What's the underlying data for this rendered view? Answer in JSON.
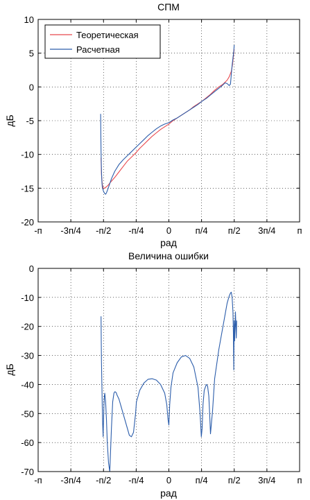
{
  "chart_data": [
    {
      "type": "line",
      "title": "СПМ",
      "xlabel": "рад",
      "ylabel": "дБ",
      "xlim": [
        -3.14159,
        3.14159
      ],
      "ylim": [
        -20,
        10
      ],
      "grid": true,
      "legend_position": "top-left",
      "x_ticks": [
        {
          "value": -3.14159,
          "label": "-п"
        },
        {
          "value": -2.35619,
          "label": "-3п/4"
        },
        {
          "value": -1.5708,
          "label": "-п/2"
        },
        {
          "value": -0.7854,
          "label": "-п/4"
        },
        {
          "value": 0,
          "label": "0"
        },
        {
          "value": 0.7854,
          "label": "п/4"
        },
        {
          "value": 1.5708,
          "label": "п/2"
        },
        {
          "value": 2.35619,
          "label": "3п/4"
        },
        {
          "value": 3.14159,
          "label": "п"
        }
      ],
      "y_ticks": [
        {
          "value": 10,
          "label": "10"
        },
        {
          "value": 5,
          "label": "5"
        },
        {
          "value": 0,
          "label": "0"
        },
        {
          "value": -5,
          "label": "-5"
        },
        {
          "value": -10,
          "label": "-10"
        },
        {
          "value": -15,
          "label": "-15"
        },
        {
          "value": -20,
          "label": "-20"
        }
      ],
      "series": [
        {
          "name": "Теоретическая",
          "color": "#e8474c",
          "x": [
            -1.63,
            -1.62,
            -1.6,
            -1.58,
            -1.55,
            -1.5,
            -1.45,
            -1.4,
            -1.3,
            -1.2,
            -1.1,
            -1.0,
            -0.9,
            -0.8,
            -0.7,
            -0.6,
            -0.5,
            -0.4,
            -0.3,
            -0.2,
            -0.1,
            0.0,
            0.1,
            0.2,
            0.3,
            0.4,
            0.5,
            0.6,
            0.7,
            0.8,
            0.9,
            1.0,
            1.1,
            1.2,
            1.3,
            1.4,
            1.45,
            1.5,
            1.53,
            1.55,
            1.57
          ],
          "y": [
            -10.5,
            -13.0,
            -14.4,
            -15.0,
            -15.0,
            -14.8,
            -14.5,
            -14.1,
            -13.4,
            -12.6,
            -11.8,
            -11.0,
            -10.4,
            -9.8,
            -9.1,
            -8.5,
            -7.9,
            -7.3,
            -6.8,
            -6.3,
            -5.9,
            -5.5,
            -5.0,
            -4.6,
            -4.2,
            -3.8,
            -3.4,
            -2.9,
            -2.5,
            -2.1,
            -1.6,
            -1.1,
            -0.5,
            0.0,
            0.4,
            1.0,
            1.5,
            2.3,
            3.3,
            4.5,
            5.6
          ]
        },
        {
          "name": "Расчетная",
          "color": "#2a5caa",
          "x": [
            -1.64,
            -1.635,
            -1.63,
            -1.62,
            -1.61,
            -1.6,
            -1.58,
            -1.56,
            -1.54,
            -1.52,
            -1.5,
            -1.47,
            -1.43,
            -1.38,
            -1.3,
            -1.2,
            -1.1,
            -1.0,
            -0.9,
            -0.8,
            -0.7,
            -0.6,
            -0.5,
            -0.4,
            -0.3,
            -0.2,
            -0.1,
            0.0,
            0.1,
            0.2,
            0.3,
            0.4,
            0.5,
            0.6,
            0.7,
            0.8,
            0.9,
            1.0,
            1.1,
            1.2,
            1.3,
            1.35,
            1.4,
            1.45,
            1.48,
            1.5,
            1.52,
            1.54,
            1.56,
            1.57
          ],
          "y": [
            -4.0,
            -7.0,
            -9.5,
            -12.5,
            -14.0,
            -14.8,
            -15.3,
            -15.6,
            -15.8,
            -15.9,
            -15.7,
            -15.2,
            -14.5,
            -13.6,
            -12.5,
            -11.5,
            -10.8,
            -10.2,
            -9.6,
            -9.0,
            -8.4,
            -7.8,
            -7.2,
            -6.7,
            -6.2,
            -5.8,
            -5.5,
            -5.3,
            -4.9,
            -4.6,
            -4.2,
            -3.8,
            -3.4,
            -3.0,
            -2.6,
            -2.1,
            -1.7,
            -1.2,
            -0.7,
            -0.2,
            0.3,
            0.6,
            0.5,
            0.2,
            0.4,
            1.8,
            3.2,
            4.3,
            5.3,
            6.2
          ]
        }
      ]
    },
    {
      "type": "line",
      "title": "Величина ошибки",
      "xlabel": "рад",
      "ylabel": "дБ",
      "xlim": [
        -3.14159,
        3.14159
      ],
      "ylim": [
        -70,
        0
      ],
      "grid": true,
      "x_ticks": [
        {
          "value": -3.14159,
          "label": "-п"
        },
        {
          "value": -2.35619,
          "label": "-3п/4"
        },
        {
          "value": -1.5708,
          "label": "-п/2"
        },
        {
          "value": -0.7854,
          "label": "-п/4"
        },
        {
          "value": 0,
          "label": "0"
        },
        {
          "value": 0.7854,
          "label": "п/4"
        },
        {
          "value": 1.5708,
          "label": "п/2"
        },
        {
          "value": 2.35619,
          "label": "3п/4"
        },
        {
          "value": 3.14159,
          "label": "п"
        }
      ],
      "y_ticks": [
        {
          "value": 0,
          "label": "0"
        },
        {
          "value": -10,
          "label": "-10"
        },
        {
          "value": -20,
          "label": "-20"
        },
        {
          "value": -30,
          "label": "-30"
        },
        {
          "value": -40,
          "label": "-40"
        },
        {
          "value": -50,
          "label": "-50"
        },
        {
          "value": -60,
          "label": "-60"
        },
        {
          "value": -70,
          "label": "-70"
        }
      ],
      "series": [
        {
          "color": "#2a5caa",
          "x": [
            -1.63,
            -1.625,
            -1.62,
            -1.61,
            -1.6,
            -1.59,
            -1.58,
            -1.57,
            -1.56,
            -1.55,
            -1.54,
            -1.52,
            -1.5,
            -1.48,
            -1.45,
            -1.42,
            -1.38,
            -1.35,
            -1.32,
            -1.3,
            -1.28,
            -1.26,
            -1.25,
            -1.2,
            -1.15,
            -1.1,
            -1.0,
            -0.95,
            -0.9,
            -0.85,
            -0.8,
            -0.78,
            -0.76,
            -0.7,
            -0.6,
            -0.5,
            -0.4,
            -0.3,
            -0.2,
            -0.1,
            -0.05,
            -0.02,
            0.0,
            0.02,
            0.05,
            0.1,
            0.2,
            0.3,
            0.4,
            0.5,
            0.6,
            0.7,
            0.75,
            0.78,
            0.8,
            0.82,
            0.85,
            0.9,
            0.93,
            0.96,
            0.98,
            1.0,
            1.05,
            1.1,
            1.2,
            1.3,
            1.35,
            1.4,
            1.45,
            1.48,
            1.5,
            1.52,
            1.54,
            1.55,
            1.56,
            1.57,
            1.58,
            1.6,
            1.62,
            1.63
          ],
          "y": [
            -16.5,
            -25.0,
            -32.0,
            -40.0,
            -48.0,
            -54.0,
            -58.0,
            -52.0,
            -47.0,
            -44.0,
            -43.0,
            -46.0,
            -52.0,
            -60.0,
            -67.0,
            -70.0,
            -55.0,
            -46.0,
            -43.0,
            -42.5,
            -42.6,
            -43.0,
            -43.5,
            -45.0,
            -47.5,
            -50.0,
            -55.0,
            -57.5,
            -58.0,
            -56.5,
            -50.0,
            -46.0,
            -45.0,
            -42.0,
            -39.5,
            -38.2,
            -38.0,
            -38.5,
            -40.0,
            -43.0,
            -47.0,
            -52.0,
            -54.0,
            -47.0,
            -41.0,
            -36.0,
            -32.5,
            -30.5,
            -30.0,
            -31.0,
            -34.0,
            -41.0,
            -50.0,
            -58.0,
            -55.0,
            -47.0,
            -42.0,
            -40.0,
            -40.5,
            -44.0,
            -50.0,
            -57.0,
            -49.0,
            -38.0,
            -28.0,
            -20.0,
            -16.0,
            -12.0,
            -9.5,
            -8.5,
            -8.2,
            -10.0,
            -15.0,
            -22.0,
            -35.0,
            -18.0,
            -25.0,
            -15.0,
            -24.0,
            -18.0
          ]
        }
      ]
    }
  ]
}
